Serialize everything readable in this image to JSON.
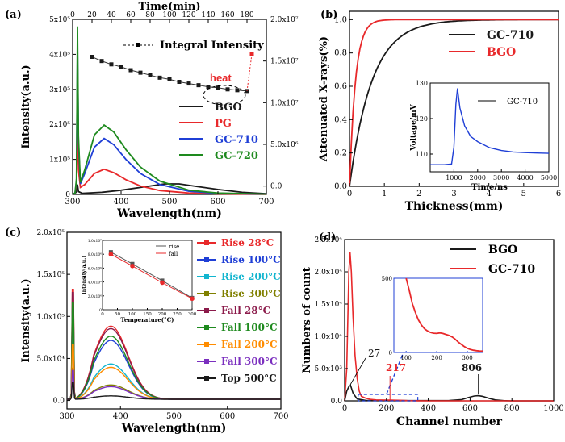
{
  "chart_data": [
    {
      "panel": "(a)",
      "type": "line",
      "xlabel": "Wavelength(nm)",
      "ylabel": "Intensity(a.u.)",
      "top_axis_label": "Time(min)",
      "xlim": [
        300,
        700
      ],
      "ylim": [
        0,
        500000
      ],
      "x_ticks": [
        "300",
        "400",
        "500",
        "600",
        "700"
      ],
      "y_ticks": [
        "0",
        "1x10⁵",
        "2x10⁵",
        "3x10⁵",
        "4x10⁵",
        "5x10⁵"
      ],
      "top_ticks": [
        "0",
        "20",
        "40",
        "60",
        "80",
        "100",
        "120",
        "140",
        "160",
        "180"
      ],
      "right_ticks": [
        "0.0",
        "5.0x10⁶",
        "1.0x10⁷",
        "1.5x10⁷",
        "2.0x10⁷"
      ],
      "top_lim": [
        0,
        200
      ],
      "right_lim": [
        -1000000,
        20000000
      ],
      "legend": [
        "BGO",
        "PG",
        "GC-710",
        "GC-720"
      ],
      "legend_colors": [
        "#1a1a1a",
        "#e8292b",
        "#1f3fd6",
        "#1e8a1e"
      ],
      "series": [
        {
          "name": "BGO",
          "color": "#1a1a1a",
          "points": [
            [
              300,
              1000
            ],
            [
              305,
              3000
            ],
            [
              308,
              8000
            ],
            [
              310,
              28000
            ],
            [
              312,
              8000
            ],
            [
              320,
              3000
            ],
            [
              360,
              6000
            ],
            [
              400,
              12000
            ],
            [
              450,
              22000
            ],
            [
              490,
              30000
            ],
            [
              520,
              30000
            ],
            [
              560,
              22000
            ],
            [
              600,
              14000
            ],
            [
              650,
              6000
            ],
            [
              700,
              2000
            ]
          ]
        },
        {
          "name": "PG",
          "color": "#e8292b",
          "points": [
            [
              300,
              1000
            ],
            [
              305,
              4000
            ],
            [
              308,
              30000
            ],
            [
              310,
              220000
            ],
            [
              312,
              70000
            ],
            [
              316,
              20000
            ],
            [
              325,
              28000
            ],
            [
              345,
              60000
            ],
            [
              365,
              72000
            ],
            [
              385,
              62000
            ],
            [
              410,
              42000
            ],
            [
              440,
              24000
            ],
            [
              480,
              11000
            ],
            [
              540,
              4000
            ],
            [
              600,
              1500
            ],
            [
              700,
              500
            ]
          ]
        },
        {
          "name": "GC-710",
          "color": "#1f3fd6",
          "points": [
            [
              300,
              1000
            ],
            [
              305,
              4000
            ],
            [
              308,
              40000
            ],
            [
              310,
              430000
            ],
            [
              312,
              150000
            ],
            [
              316,
              30000
            ],
            [
              325,
              60000
            ],
            [
              345,
              135000
            ],
            [
              365,
              160000
            ],
            [
              385,
              142000
            ],
            [
              410,
              100000
            ],
            [
              440,
              60000
            ],
            [
              480,
              28000
            ],
            [
              540,
              9000
            ],
            [
              600,
              3000
            ],
            [
              700,
              1000
            ]
          ]
        },
        {
          "name": "GC-720",
          "color": "#1e8a1e",
          "points": [
            [
              300,
              1000
            ],
            [
              305,
              4000
            ],
            [
              308,
              45000
            ],
            [
              310,
              480000
            ],
            [
              312,
              165000
            ],
            [
              316,
              34000
            ],
            [
              325,
              70000
            ],
            [
              345,
              170000
            ],
            [
              365,
              198000
            ],
            [
              385,
              178000
            ],
            [
              410,
              128000
            ],
            [
              440,
              78000
            ],
            [
              480,
              38000
            ],
            [
              540,
              12000
            ],
            [
              600,
              4000
            ],
            [
              700,
              1000
            ]
          ]
        }
      ],
      "integral_series": {
        "name": "Integral Intensity",
        "color": "#1a1a1a",
        "axis": "top-right",
        "x_min": [
          20,
          30,
          40,
          50,
          60,
          70,
          80,
          90,
          100,
          110,
          120,
          130,
          140,
          150,
          160,
          170,
          180
        ],
        "y": [
          15500000,
          15000000,
          14600000,
          14300000,
          13900000,
          13600000,
          13300000,
          13000000,
          12800000,
          12500000,
          12300000,
          12100000,
          11900000,
          11800000,
          11600000,
          11500000,
          11400000
        ]
      },
      "heat_point": {
        "x_min": 185,
        "y": 15800000,
        "color": "#e8292b"
      },
      "heat_label": "heat"
    },
    {
      "panel": "(b)",
      "type": "line",
      "xlabel": "Thickness(mm)",
      "ylabel": "Attenuated X-rays(%)",
      "xlim": [
        0,
        6
      ],
      "ylim": [
        0,
        1.05
      ],
      "x_ticks": [
        "0",
        "1",
        "2",
        "3",
        "4",
        "5",
        "6"
      ],
      "y_ticks": [
        "0.0",
        "0.2",
        "0.4",
        "0.6",
        "0.8",
        "1.0"
      ],
      "legend": [
        "GC-710",
        "BGO"
      ],
      "legend_colors": [
        "#1a1a1a",
        "#e8292b"
      ],
      "series": [
        {
          "name": "GC-710",
          "color": "#1a1a1a",
          "mu": 1.55
        },
        {
          "name": "BGO",
          "color": "#e8292b",
          "mu": 5.8
        }
      ],
      "inset": {
        "xlabel": "Time/ns",
        "ylabel": "Voltage/mV",
        "legend": "GC-710",
        "xlim": [
          0,
          5000
        ],
        "ylim": [
          105,
          130
        ],
        "x_ticks": [
          "1000",
          "2000",
          "3000",
          "4000",
          "5000"
        ],
        "y_ticks": [
          "110",
          "120",
          "130"
        ],
        "points": [
          [
            0,
            107
          ],
          [
            600,
            107
          ],
          [
            900,
            107.2
          ],
          [
            1000,
            112
          ],
          [
            1080,
            124
          ],
          [
            1150,
            128.5
          ],
          [
            1250,
            123
          ],
          [
            1450,
            118
          ],
          [
            1700,
            115
          ],
          [
            2000,
            113.5
          ],
          [
            2500,
            111.8
          ],
          [
            3000,
            111
          ],
          [
            3500,
            110.6
          ],
          [
            4000,
            110.4
          ],
          [
            4500,
            110.3
          ],
          [
            5000,
            110.2
          ]
        ]
      }
    },
    {
      "panel": "(c)",
      "type": "line",
      "xlabel": "Wavelength(nm)",
      "ylabel": "Intensity(a.u.)",
      "xlim": [
        300,
        700
      ],
      "ylim": [
        -10000,
        200000
      ],
      "x_ticks": [
        "300",
        "400",
        "500",
        "600",
        "700"
      ],
      "y_ticks": [
        "0.0",
        "5.0x10⁴",
        "1.0x10⁵",
        "1.5x10⁵",
        "2.0x10⁵"
      ],
      "legend": [
        "Rise 28°C",
        "Rise 100°C",
        "Rise 200°C",
        "Rise 300°C",
        "Fall 28°C",
        "Fall 100°C",
        "Fall 200°C",
        "Fall 300°C",
        "Top 500°C"
      ],
      "legend_colors": [
        "#e8292b",
        "#1f3fd6",
        "#12b5cf",
        "#808000",
        "#8b1a4a",
        "#1e8a1e",
        "#ff8c00",
        "#7b2fbf",
        "#1a1a1a"
      ],
      "series": [
        {
          "name": "Rise 28°C",
          "color": "#e8292b",
          "peak": 87000
        },
        {
          "name": "Rise 100°C",
          "color": "#1f3fd6",
          "peak": 70000
        },
        {
          "name": "Rise 200°C",
          "color": "#12b5cf",
          "peak": 42000
        },
        {
          "name": "Rise 300°C",
          "color": "#808000",
          "peak": 17000
        },
        {
          "name": "Fall 28°C",
          "color": "#8b1a4a",
          "peak": 84000
        },
        {
          "name": "Fall 100°C",
          "color": "#1e8a1e",
          "peak": 75000
        },
        {
          "name": "Fall 200°C",
          "color": "#ff8c00",
          "peak": 38000
        },
        {
          "name": "Fall 300°C",
          "color": "#7b2fbf",
          "peak": 15000
        },
        {
          "name": "Top 500°C",
          "color": "#1a1a1a",
          "peak": 4000
        }
      ],
      "inset": {
        "xlabel": "Temperature(°C)",
        "ylabel": "Intensity(a.u.)",
        "xlim": [
          0,
          300
        ],
        "ylim": [
          0,
          10000000
        ],
        "x_ticks": [
          "0",
          "50",
          "100",
          "150",
          "200",
          "250",
          "300"
        ],
        "y_ticks": [
          "0",
          "2.0x10⁶",
          "4.0x10⁶",
          "6.0x10⁶",
          "8.0x10⁶",
          "1.0x10⁷"
        ],
        "legend": [
          "rise",
          "fall"
        ],
        "series": [
          {
            "name": "rise",
            "color": "#555555",
            "x": [
              28,
              100,
              200,
              300
            ],
            "y": [
              8300000,
              6600000,
              4200000,
              1700000
            ]
          },
          {
            "name": "fall",
            "color": "#e8292b",
            "x": [
              28,
              100,
              200,
              300
            ],
            "y": [
              8000000,
              6300000,
              3900000,
              1600000
            ]
          }
        ]
      }
    },
    {
      "panel": "(d)",
      "type": "line",
      "xlabel": "Channel number",
      "ylabel": "Numbers of count",
      "xlim": [
        0,
        1000
      ],
      "ylim": [
        0,
        25000
      ],
      "x_ticks": [
        "0",
        "200",
        "400",
        "600",
        "800",
        "1000"
      ],
      "y_ticks": [
        "0.0",
        "5.0x10³",
        "1.0x10⁴",
        "1.5x10⁴",
        "2.0x10⁴",
        "2.5x10⁴"
      ],
      "legend": [
        "BGO",
        "GC-710"
      ],
      "legend_colors": [
        "#1a1a1a",
        "#e8292b"
      ],
      "annotations": [
        {
          "text": "27",
          "color": "#1a1a1a"
        },
        {
          "text": "217",
          "color": "#e8292b"
        },
        {
          "text": "806",
          "color": "#1a1a1a"
        }
      ],
      "series": [
        {
          "name": "BGO",
          "color": "#1a1a1a",
          "points": [
            [
              0,
              0
            ],
            [
              10,
              1500
            ],
            [
              20,
              2200
            ],
            [
              28,
              2400
            ],
            [
              40,
              1200
            ],
            [
              60,
              300
            ],
            [
              100,
              80
            ],
            [
              300,
              40
            ],
            [
              500,
              50
            ],
            [
              560,
              200
            ],
            [
              590,
              500
            ],
            [
              620,
              750
            ],
            [
              640,
              800
            ],
            [
              660,
              700
            ],
            [
              690,
              400
            ],
            [
              720,
              150
            ],
            [
              760,
              40
            ],
            [
              800,
              0
            ],
            [
              1000,
              0
            ]
          ]
        },
        {
          "name": "GC-710",
          "color": "#e8292b",
          "points": [
            [
              0,
              0
            ],
            [
              10,
              5000
            ],
            [
              20,
              20000
            ],
            [
              26,
              23000
            ],
            [
              32,
              20000
            ],
            [
              40,
              13000
            ],
            [
              50,
              7000
            ],
            [
              60,
              3500
            ],
            [
              70,
              1500
            ],
            [
              80,
              700
            ],
            [
              100,
              430
            ],
            [
              120,
              250
            ],
            [
              150,
              150
            ],
            [
              200,
              110
            ],
            [
              220,
              120
            ],
            [
              260,
              90
            ],
            [
              300,
              40
            ],
            [
              350,
              10
            ],
            [
              400,
              0
            ],
            [
              1000,
              0
            ]
          ]
        }
      ],
      "inset": {
        "xlim": [
          60,
          350
        ],
        "ylim": [
          0,
          500
        ],
        "x_ticks": [
          "100",
          "200",
          "300"
        ],
        "y_ticks": [
          "0",
          "500"
        ],
        "points": [
          [
            100,
            500
          ],
          [
            110,
            420
          ],
          [
            120,
            330
          ],
          [
            130,
            270
          ],
          [
            140,
            220
          ],
          [
            150,
            185
          ],
          [
            160,
            160
          ],
          [
            170,
            145
          ],
          [
            180,
            135
          ],
          [
            190,
            130
          ],
          [
            200,
            128
          ],
          [
            210,
            132
          ],
          [
            220,
            128
          ],
          [
            230,
            122
          ],
          [
            240,
            115
          ],
          [
            250,
            105
          ],
          [
            260,
            90
          ],
          [
            270,
            70
          ],
          [
            280,
            55
          ],
          [
            290,
            40
          ],
          [
            300,
            28
          ],
          [
            310,
            20
          ],
          [
            320,
            15
          ],
          [
            330,
            12
          ],
          [
            340,
            10
          ],
          [
            350,
            9
          ]
        ]
      }
    }
  ]
}
